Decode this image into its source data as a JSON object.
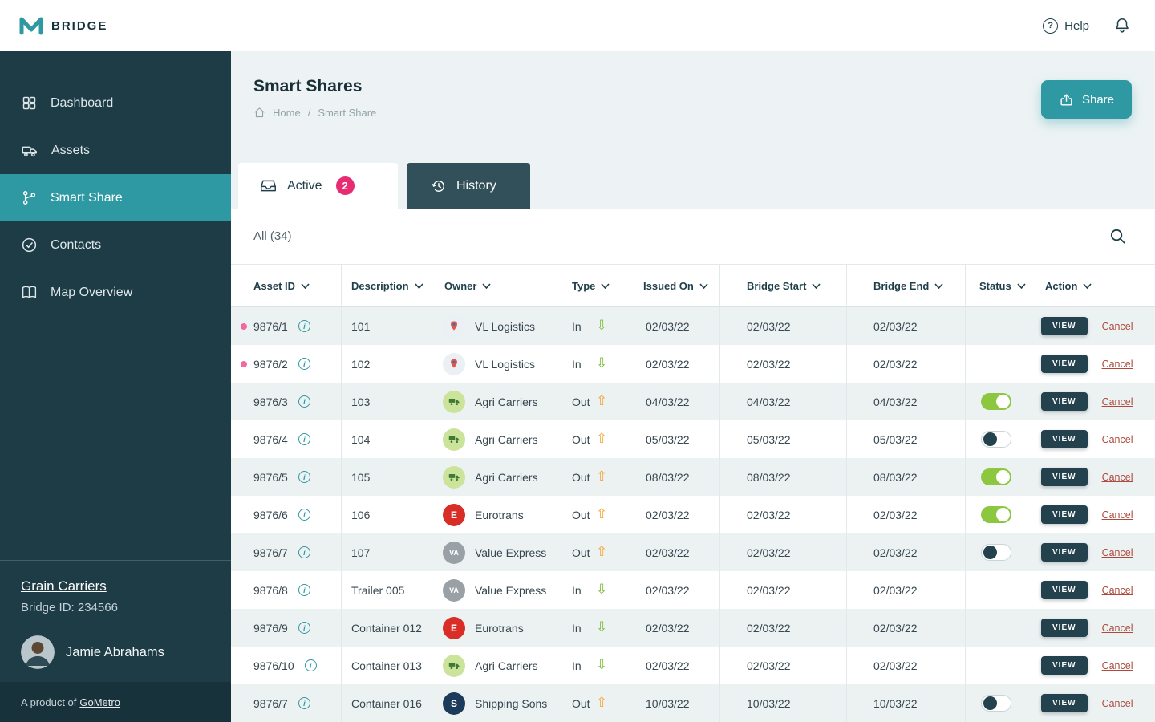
{
  "brand": {
    "name": "BRIDGE"
  },
  "topbar": {
    "help": "Help"
  },
  "sidebar": {
    "items": [
      {
        "label": "Dashboard",
        "icon": "dashboard-icon",
        "active": false
      },
      {
        "label": "Assets",
        "icon": "truck-icon",
        "active": false
      },
      {
        "label": "Smart Share",
        "icon": "branch-icon",
        "active": true
      },
      {
        "label": "Contacts",
        "icon": "check-circle-icon",
        "active": false
      },
      {
        "label": "Map Overview",
        "icon": "map-book-icon",
        "active": false
      }
    ],
    "org": {
      "name": "Grain Carriers",
      "bridge_id": "Bridge ID: 234566"
    },
    "user": {
      "name": "Jamie Abrahams"
    },
    "footer": {
      "prefix": "A product of",
      "link": "GoMetro"
    }
  },
  "page": {
    "title": "Smart Shares",
    "breadcrumb": {
      "home": "Home",
      "separator": "/",
      "current": "Smart Share"
    },
    "share_button": "Share",
    "tabs": [
      {
        "label": "Active",
        "badge": "2"
      },
      {
        "label": "History"
      }
    ],
    "filter_label": "All (34)"
  },
  "table": {
    "columns": [
      "Asset ID",
      "Description",
      "Owner",
      "Type",
      "Issued On",
      "Bridge Start",
      "Bridge End",
      "Status",
      "Action"
    ],
    "view_label": "VIEW",
    "cancel_label": "Cancel",
    "logos": {
      "vl": {
        "kind": "pin",
        "bg": "#EAF0F3"
      },
      "agri": {
        "kind": "truck",
        "bg": "#CBE39B"
      },
      "euro": {
        "kind": "text",
        "text": "E",
        "bg": "#D92D27",
        "fg": "#FFFFFF"
      },
      "value": {
        "kind": "text",
        "text": "VA",
        "bg": "#9AA1A6",
        "fg": "#FFFFFF"
      },
      "shipping": {
        "kind": "text",
        "text": "S",
        "bg": "#1C3B5A",
        "fg": "#FFFFFF"
      }
    },
    "rows": [
      {
        "dot": true,
        "asset_id": "9876/1",
        "description": "101",
        "owner": "VL Logistics",
        "logo": "vl",
        "type": "In",
        "issued_on": "02/03/22",
        "bridge_start": "02/03/22",
        "bridge_end": "02/03/22",
        "status": "none"
      },
      {
        "dot": true,
        "asset_id": "9876/2",
        "description": "102",
        "owner": "VL Logistics",
        "logo": "vl",
        "type": "In",
        "issued_on": "02/03/22",
        "bridge_start": "02/03/22",
        "bridge_end": "02/03/22",
        "status": "none"
      },
      {
        "dot": false,
        "asset_id": "9876/3",
        "description": "103",
        "owner": "Agri Carriers",
        "logo": "agri",
        "type": "Out",
        "issued_on": "04/03/22",
        "bridge_start": "04/03/22",
        "bridge_end": "04/03/22",
        "status": "on"
      },
      {
        "dot": false,
        "asset_id": "9876/4",
        "description": "104",
        "owner": "Agri Carriers",
        "logo": "agri",
        "type": "Out",
        "issued_on": "05/03/22",
        "bridge_start": "05/03/22",
        "bridge_end": "05/03/22",
        "status": "off"
      },
      {
        "dot": false,
        "asset_id": "9876/5",
        "description": "105",
        "owner": "Agri Carriers",
        "logo": "agri",
        "type": "Out",
        "issued_on": "08/03/22",
        "bridge_start": "08/03/22",
        "bridge_end": "08/03/22",
        "status": "on"
      },
      {
        "dot": false,
        "asset_id": "9876/6",
        "description": "106",
        "owner": "Eurotrans",
        "logo": "euro",
        "type": "Out",
        "issued_on": "02/03/22",
        "bridge_start": "02/03/22",
        "bridge_end": "02/03/22",
        "status": "on"
      },
      {
        "dot": false,
        "asset_id": "9876/7",
        "description": "107",
        "owner": "Value Express",
        "logo": "value",
        "type": "Out",
        "issued_on": "02/03/22",
        "bridge_start": "02/03/22",
        "bridge_end": "02/03/22",
        "status": "off"
      },
      {
        "dot": false,
        "asset_id": "9876/8",
        "description": "Trailer 005",
        "owner": "Value Express",
        "logo": "value",
        "type": "In",
        "issued_on": "02/03/22",
        "bridge_start": "02/03/22",
        "bridge_end": "02/03/22",
        "status": "none"
      },
      {
        "dot": false,
        "asset_id": "9876/9",
        "description": "Container 012",
        "owner": "Eurotrans",
        "logo": "euro",
        "type": "In",
        "issued_on": "02/03/22",
        "bridge_start": "02/03/22",
        "bridge_end": "02/03/22",
        "status": "none"
      },
      {
        "dot": false,
        "asset_id": "9876/10",
        "description": "Container 013",
        "owner": "Agri Carriers",
        "logo": "agri",
        "type": "In",
        "issued_on": "02/03/22",
        "bridge_start": "02/03/22",
        "bridge_end": "02/03/22",
        "status": "none"
      },
      {
        "dot": false,
        "asset_id": "9876/7",
        "description": "Container 016",
        "owner": "Shipping Sons",
        "logo": "shipping",
        "type": "Out",
        "issued_on": "10/03/22",
        "bridge_start": "10/03/22",
        "bridge_end": "10/03/22",
        "status": "off"
      }
    ]
  },
  "colors": {
    "accent": "#2F99A3",
    "sidebar": "#1E3C46",
    "sidebar-footer": "#17323B",
    "badge": "#E82C74",
    "dot": "#F0699F",
    "green": "#7DBE3B",
    "orange": "#F2A93B",
    "navy": "#24424D",
    "cancel": "#AE4A3C",
    "stripe": "#ECF1F2",
    "pagebg": "#EDF3F4",
    "historytab": "#31505A"
  }
}
